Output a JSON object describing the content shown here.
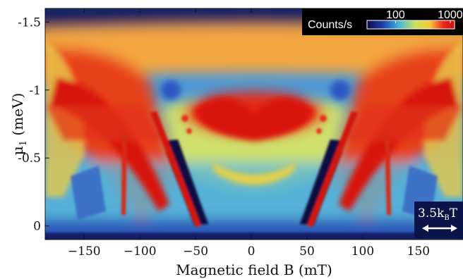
{
  "chart_data": {
    "type": "heatmap",
    "title": "",
    "xlabel": "Magnetic field B (mT)",
    "ylabel": "μ1 (meV)",
    "xlim": [
      -185,
      190
    ],
    "ylim": [
      0.1,
      -1.6
    ],
    "y_axis_inverted": true,
    "xticks": [
      -150,
      -100,
      -50,
      0,
      50,
      100,
      150
    ],
    "xtick_labels": [
      "−150",
      "−100",
      "−50",
      "0",
      "50",
      "100",
      "150"
    ],
    "yticks": [
      -1.5,
      -1,
      -0.5,
      0
    ],
    "ytick_labels": [
      "-1.5",
      "-1",
      "-0.5",
      "0"
    ],
    "colorbar": {
      "label": "Counts/s",
      "scale": "log",
      "tick_values": [
        100,
        1000
      ],
      "tick_labels": [
        "100",
        "1000"
      ],
      "colormap": [
        "#0a0a4a",
        "#1e3fa8",
        "#3fb5e0",
        "#c8e05a",
        "#f5c53a",
        "#ee2a1a",
        "#c8100c"
      ]
    },
    "scale_bar_label": "3.5k",
    "scale_bar_sub": "B",
    "scale_bar_tail": "T",
    "features": [
      {
        "b": 0,
        "mu": -1.0,
        "counts": 1000
      },
      {
        "b": -90,
        "mu": -1.05,
        "counts": 1000
      },
      {
        "b": 90,
        "mu": -1.05,
        "counts": 1000
      },
      {
        "b": -60,
        "mu": -0.4,
        "counts": 40
      },
      {
        "b": 60,
        "mu": -0.4,
        "counts": 40
      },
      {
        "b": -82,
        "mu": -1.0,
        "counts": 90
      },
      {
        "b": 82,
        "mu": -1.0,
        "counts": 90
      },
      {
        "b": 0,
        "mu": -0.3,
        "counts": 500
      },
      {
        "b": 0,
        "mu": -1.45,
        "counts": 120
      },
      {
        "b": 0,
        "mu": 0.05,
        "counts": 60
      }
    ]
  }
}
